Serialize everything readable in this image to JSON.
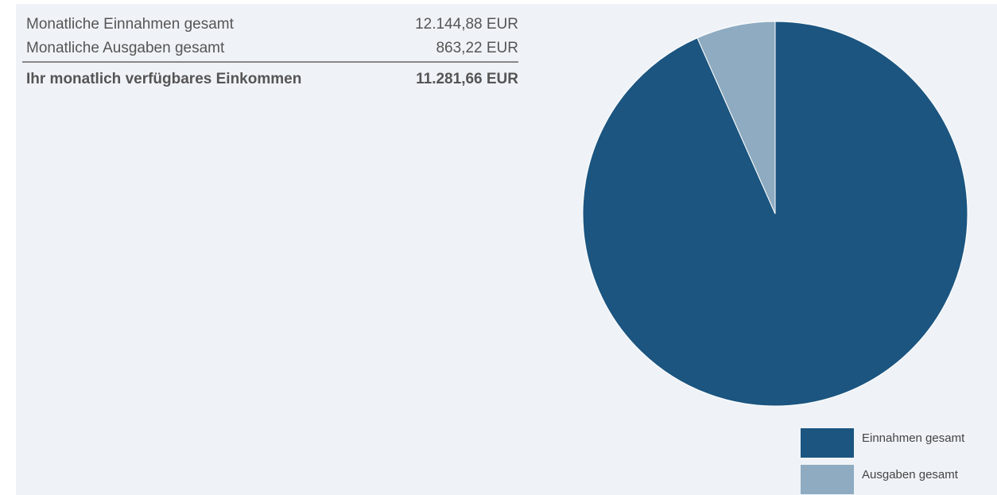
{
  "summary": {
    "rows": [
      {
        "label": "Monatliche Einnahmen gesamt",
        "amount": "12.144,88 EUR"
      },
      {
        "label": "Monatliche Ausgaben gesamt",
        "amount": "863,22 EUR"
      }
    ],
    "total": {
      "label": "Ihr monatlich verfügbares Einkommen",
      "amount": "11.281,66 EUR"
    }
  },
  "chart_data": {
    "type": "pie",
    "categories": [
      "Einnahmen gesamt",
      "Ausgaben gesamt"
    ],
    "values": [
      12144.88,
      863.22
    ],
    "colors": [
      "#1b5580",
      "#8eabc1"
    ],
    "start_angle": 0,
    "direction": "clockwise",
    "legend": "bottom-right"
  }
}
